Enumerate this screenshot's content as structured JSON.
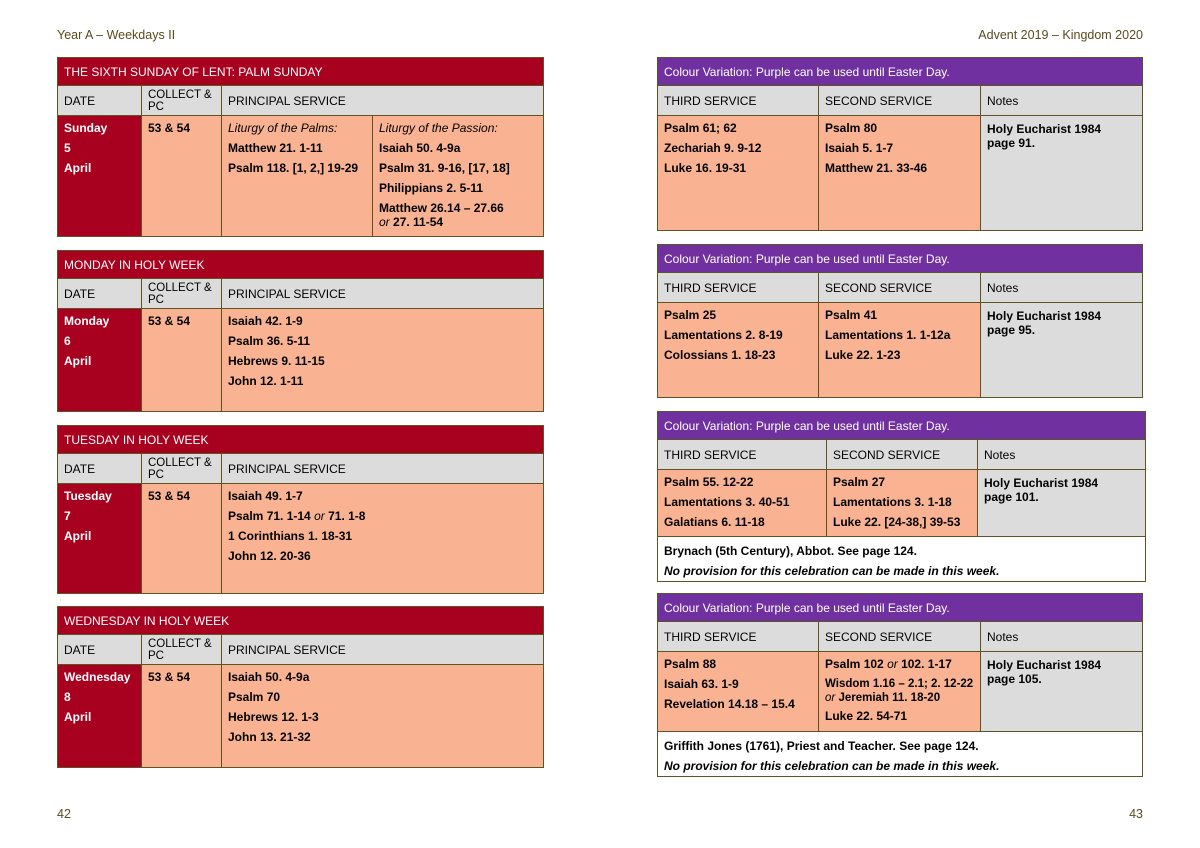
{
  "header": {
    "left": "Year A – Weekdays II",
    "right": "Advent 2019 – Kingdom 2020"
  },
  "pages": {
    "left": "42",
    "right": "43"
  },
  "columns": {
    "date": "DATE",
    "collect_pc": "COLLECT & PC",
    "principal": "PRINCIPAL SERVICE",
    "third": "THIRD SERVICE",
    "second": "SECOND SERVICE",
    "notes": "Notes"
  },
  "left_tables": [
    {
      "title": "THE SIXTH SUNDAY OF LENT: PALM SUNDAY",
      "date_lines": [
        "Sunday",
        "5",
        "April"
      ],
      "collect": "53 & 54",
      "principal_a": [
        "Liturgy of the Palms:",
        "Matthew 21. 1-11",
        "Psalm 118. [1, 2,] 19-29"
      ],
      "principal_b": [
        "Liturgy of the Passion:",
        "Isaiah 50. 4-9a",
        "Psalm 31. 9-16, [17, 18]",
        "Philippians 2. 5-11",
        "Matthew 26.14 – 27.66",
        "or",
        "27. 11-54"
      ]
    },
    {
      "title": "MONDAY IN HOLY WEEK",
      "date_lines": [
        "Monday",
        "6",
        "April"
      ],
      "collect": "53 & 54",
      "principal": [
        "Isaiah 42. 1-9",
        "Psalm 36. 5-11",
        "Hebrews 9. 11-15",
        "John 12. 1-11"
      ]
    },
    {
      "title": "TUESDAY IN HOLY WEEK",
      "date_lines": [
        "Tuesday",
        "7",
        "April"
      ],
      "collect": "53 & 54",
      "principal": [
        "Isaiah 49. 1-7",
        "Psalm 71. 1-14",
        "or",
        "71. 1-8",
        "1 Corinthians 1. 18-31",
        "John 12. 20-36"
      ]
    },
    {
      "title": "WEDNESDAY IN HOLY WEEK",
      "date_lines": [
        "Wednesday",
        "8",
        "April"
      ],
      "collect": "53 & 54",
      "principal": [
        "Isaiah 50. 4-9a",
        "Psalm 70",
        "Hebrews 12. 1-3",
        "John 13. 21-32"
      ]
    }
  ],
  "right_tables": [
    {
      "title": "Colour Variation: Purple can be used until Easter Day.",
      "third": [
        "Psalm 61; 62",
        "Zechariah 9. 9-12",
        "Luke 16. 19-31"
      ],
      "second": [
        "Psalm 80",
        "Isaiah 5. 1-7",
        "Matthew 21. 33-46"
      ],
      "notes": "Holy Eucharist 1984 page 91."
    },
    {
      "title": "Colour Variation: Purple can be used until Easter Day.",
      "third": [
        "Psalm 25",
        "Lamentations 2. 8-19",
        "Colossians 1. 18-23"
      ],
      "second": [
        "Psalm 41",
        "Lamentations 1. 1-12a",
        "Luke 22. 1-23"
      ],
      "notes": "Holy Eucharist 1984 page 95."
    },
    {
      "title": "Colour Variation: Purple can be used until Easter Day.",
      "third": [
        "Psalm 55. 12-22",
        "Lamentations 3. 40-51",
        "Galatians 6. 11-18"
      ],
      "second": [
        "Psalm 27",
        "Lamentations 3. 1-18",
        "Luke 22. [24-38,] 39-53"
      ],
      "notes": "Holy Eucharist 1984 page 101.",
      "footer": [
        "Brynach (5th Century), Abbot. See page 124.",
        "No provision for this celebration can be made in this week."
      ]
    },
    {
      "title": "Colour Variation: Purple can be used until Easter Day.",
      "third": [
        "Psalm 88",
        "Isaiah 63. 1-9",
        "Revelation 14.18 – 15.4"
      ],
      "second_a": "Psalm 102",
      "second_or": "or",
      "second_b": "102. 1-17",
      "second_c": "Wisdom 1.16 – 2.1;  2. 12-22",
      "second_d": "Jeremiah 11. 18-20",
      "second_e": "Luke 22. 54-71",
      "notes": "Holy Eucharist 1984 page 105.",
      "footer": [
        "Griffith Jones (1761), Priest and Teacher. See page 124.",
        "No provision for this celebration can be made in this week."
      ]
    }
  ]
}
